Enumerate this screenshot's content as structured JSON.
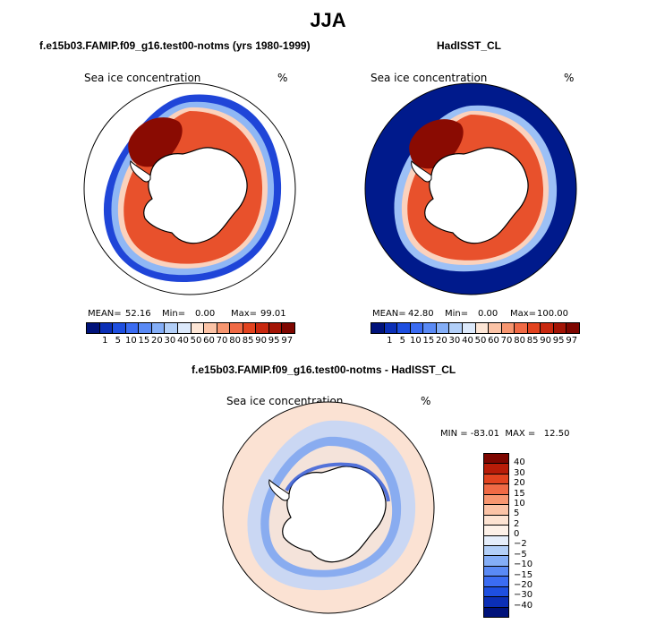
{
  "title": "JJA",
  "panels": [
    {
      "title": "f.e15b03.FAMIP.f09_g16.test00-notms (yrs 1980-1999)",
      "variable": "Sea ice concentration",
      "units": "%",
      "mean_label": "MEAN=",
      "mean": "52.16",
      "min_label": "Min=",
      "min": "0.00",
      "max_label": "Max=",
      "max": "99.01"
    },
    {
      "title": "HadISST_CL",
      "variable": "Sea ice concentration",
      "units": "%",
      "mean_label": "MEAN=",
      "mean": "42.80",
      "min_label": "Min=",
      "min": "0.00",
      "max_label": "Max=",
      "max": "100.00"
    },
    {
      "title": "f.e15b03.FAMIP.f09_g16.test00-notms - HadISST_CL",
      "variable": "Sea ice concentration",
      "units": "%",
      "minmax_text": "MIN = -83.01  MAX =   12.50"
    }
  ],
  "colorbar_abs": {
    "ticks": [
      "1",
      "5",
      "10",
      "15",
      "20",
      "30",
      "40",
      "50",
      "60",
      "70",
      "80",
      "85",
      "90",
      "95",
      "97"
    ],
    "colors": [
      "#00127a",
      "#0b2fb6",
      "#1e4fe0",
      "#3b6cf2",
      "#5a8af5",
      "#84aef7",
      "#b2cff8",
      "#dce9fb",
      "#fde6d6",
      "#fbc3a6",
      "#f79670",
      "#f06a45",
      "#e2431f",
      "#c8280f",
      "#a31405",
      "#7e0600"
    ]
  },
  "colorbar_diff": {
    "ticks": [
      "40",
      "30",
      "20",
      "15",
      "10",
      "5",
      "2",
      "0",
      "−2",
      "−5",
      "−10",
      "−15",
      "−20",
      "−30",
      "−40"
    ],
    "colors": [
      "#7e0600",
      "#b81c08",
      "#e2431f",
      "#f06a45",
      "#f79670",
      "#fbc3a6",
      "#fde3d2",
      "#fdf1e8",
      "#e5eefb",
      "#b2cff8",
      "#84aef7",
      "#5a8af5",
      "#3b6cf2",
      "#1e4fe0",
      "#0b2fb6",
      "#00127a"
    ]
  }
}
